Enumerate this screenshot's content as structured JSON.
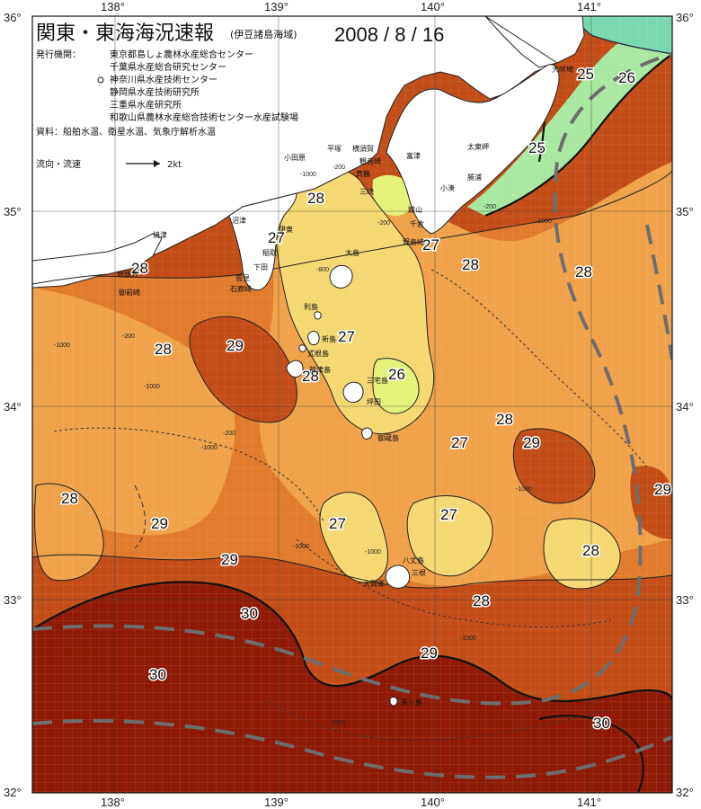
{
  "header": {
    "title": "関東・東海海況速報",
    "subtitle": "(伊豆諸島海域)",
    "date": "2008 / 8 / 16",
    "org_label": "発行機関：",
    "orgs": [
      "東京都島しょ農林水産総合センター",
      "千葉県水産総合研究センター",
      "神奈川県水産技術センター",
      "静岡県水産技術研究所",
      "三重県水産研究所",
      "和歌山県農林水産総合技術センター水産試験場"
    ],
    "source": "資料：船舶水温、衛星水温、気象庁解析水温",
    "current_label": "流向・流速",
    "current_unit": "2kt"
  },
  "axes": {
    "lon_labels": [
      "138°",
      "139°",
      "140°",
      "141°"
    ],
    "lat_labels": [
      "36°",
      "35°",
      "34°",
      "33°",
      "32°"
    ],
    "corner_top_left": "36°",
    "corner_top_right": "36°",
    "corner_bottom_left": "32°",
    "corner_bottom_right": "32°"
  },
  "colors": {
    "t25": "#a8e8a0",
    "t26": "#e4f27a",
    "t27": "#f6d872",
    "t28": "#f0a14a",
    "t28b": "#e07a2c",
    "t29": "#c24d16",
    "t30": "#8e1a06",
    "land": "#ffffff"
  },
  "isotherms": [
    {
      "label": "25"
    },
    {
      "label": "26"
    },
    {
      "label": "25"
    },
    {
      "label": "28"
    },
    {
      "label": "27"
    },
    {
      "label": "28"
    },
    {
      "label": "27"
    },
    {
      "label": "28"
    },
    {
      "label": "28"
    },
    {
      "label": "28"
    },
    {
      "label": "29"
    },
    {
      "label": "27"
    },
    {
      "label": "28"
    },
    {
      "label": "26"
    },
    {
      "label": "28"
    },
    {
      "label": "27"
    },
    {
      "label": "29"
    },
    {
      "label": "28"
    },
    {
      "label": "29"
    },
    {
      "label": "29"
    },
    {
      "label": "27"
    },
    {
      "label": "27"
    },
    {
      "label": "29"
    },
    {
      "label": "28"
    },
    {
      "label": "28"
    },
    {
      "label": "30"
    },
    {
      "label": "30"
    },
    {
      "label": "29"
    },
    {
      "label": "30"
    },
    {
      "label": "29"
    }
  ],
  "places": [
    {
      "name": "犬吠埼"
    },
    {
      "name": "太東岬"
    },
    {
      "name": "勝浦"
    },
    {
      "name": "小湊"
    },
    {
      "name": "館山"
    },
    {
      "name": "千倉"
    },
    {
      "name": "野島崎"
    },
    {
      "name": "富津"
    },
    {
      "name": "横須賀"
    },
    {
      "name": "観音崎"
    },
    {
      "name": "平塚"
    },
    {
      "name": "小田原"
    },
    {
      "name": "真鶴"
    },
    {
      "name": "三崎"
    },
    {
      "name": "沼津"
    },
    {
      "name": "伊東"
    },
    {
      "name": "稲取"
    },
    {
      "name": "下田"
    },
    {
      "name": "雲見"
    },
    {
      "name": "石廊崎"
    },
    {
      "name": "焼津"
    },
    {
      "name": "地頭方"
    },
    {
      "name": "御前崎"
    },
    {
      "name": "大島"
    },
    {
      "name": "利島"
    },
    {
      "name": "新島"
    },
    {
      "name": "式根島"
    },
    {
      "name": "神津島"
    },
    {
      "name": "三宅島"
    },
    {
      "name": "坪田"
    },
    {
      "name": "御蔵島"
    },
    {
      "name": "八丈島"
    },
    {
      "name": "三根"
    },
    {
      "name": "大賀郷"
    },
    {
      "name": "青ヶ島"
    }
  ],
  "depth_labels": [
    "-1000",
    "-200",
    "-1000",
    "-200",
    "-200",
    "-1000",
    "-200",
    "-1000",
    "-1000",
    "-1000",
    "-1000",
    "-1000",
    "-1000",
    "-200",
    "-1000",
    "-800"
  ]
}
